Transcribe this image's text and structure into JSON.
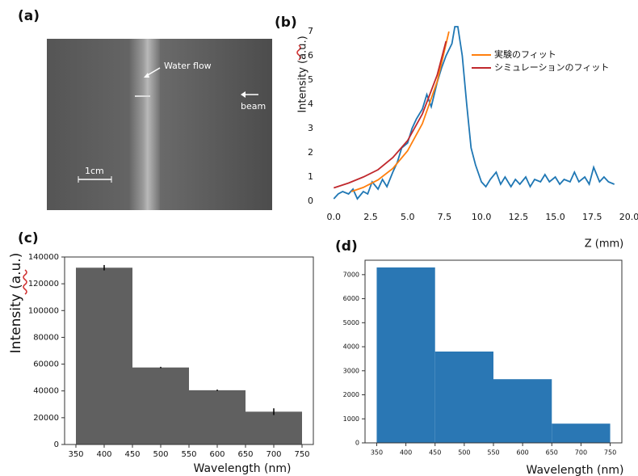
{
  "image": {
    "panel_label": "(a)",
    "annotations": [
      "Water flow",
      "beam",
      "1cm"
    ]
  },
  "chart_data": [
    {
      "type": "line",
      "panel_label": "(b)",
      "y_label": "Intensity (a.u.)",
      "x_label": "Z (mm)",
      "xlim": [
        -1,
        20
      ],
      "ylim": [
        -0.4,
        7.4
      ],
      "xticks": [
        {
          "value": 0,
          "label": "0.0"
        },
        {
          "value": 2.5,
          "label": "2.5"
        },
        {
          "value": 5,
          "label": "5.0"
        },
        {
          "value": 7.5,
          "label": "7.5"
        },
        {
          "value": 10,
          "label": "10.0"
        },
        {
          "value": 12.5,
          "label": "12.5"
        },
        {
          "value": 15,
          "label": "15.0"
        },
        {
          "value": 17.5,
          "label": "17.5"
        },
        {
          "value": 20,
          "label": "20.0"
        }
      ],
      "yticks": [
        0,
        1,
        2,
        3,
        4,
        5,
        6,
        7
      ],
      "series": [
        {
          "color": "#1f77b4",
          "x": [
            0,
            0.3,
            0.6,
            1,
            1.3,
            1.6,
            2,
            2.3,
            2.6,
            3,
            3.3,
            3.6,
            4,
            4.3,
            4.6,
            5,
            5.3,
            5.6,
            6,
            6.3,
            6.6,
            7,
            7.3,
            7.6,
            8,
            8.2,
            8.4,
            8.7,
            9,
            9.3,
            9.6,
            10,
            10.3,
            10.6,
            11,
            11.3,
            11.6,
            12,
            12.3,
            12.6,
            13,
            13.3,
            13.6,
            14,
            14.3,
            14.6,
            15,
            15.3,
            15.6,
            16,
            16.3,
            16.6,
            17,
            17.3,
            17.6,
            18,
            18.3,
            18.6,
            19
          ],
          "values": [
            0.1,
            0.3,
            0.4,
            0.3,
            0.5,
            0.1,
            0.4,
            0.3,
            0.8,
            0.5,
            0.9,
            0.6,
            1.2,
            1.6,
            2.2,
            2.4,
            3.0,
            3.4,
            3.8,
            4.4,
            3.9,
            4.9,
            5.5,
            6.0,
            6.5,
            7.2,
            7.2,
            6.0,
            4.0,
            2.2,
            1.5,
            0.8,
            0.6,
            0.9,
            1.2,
            0.7,
            1.0,
            0.6,
            0.9,
            0.7,
            1.0,
            0.6,
            0.9,
            0.8,
            1.1,
            0.8,
            1.0,
            0.7,
            0.9,
            0.8,
            1.2,
            0.8,
            1.0,
            0.7,
            1.4,
            0.8,
            1.0,
            0.8,
            0.7
          ]
        },
        {
          "name": "実験のフィット",
          "color": "#ff7f0e",
          "x": [
            1.2,
            2,
            3,
            4,
            5,
            6,
            7,
            7.8
          ],
          "values": [
            0.4,
            0.57,
            0.88,
            1.35,
            2.08,
            3.2,
            4.93,
            7.0
          ]
        },
        {
          "name": "シミュレーションのフィット",
          "color": "#c0282d",
          "x": [
            0,
            1,
            2,
            3,
            4,
            5,
            6,
            7,
            7.6
          ],
          "values": [
            0.55,
            0.75,
            1.0,
            1.3,
            1.8,
            2.5,
            3.6,
            5.2,
            6.6
          ]
        }
      ]
    },
    {
      "type": "histogram",
      "panel_label": "(c)",
      "y_label": "Intensity (a.u.)",
      "x_label": "Wavelength (nm)",
      "color": "#606060",
      "xlim": [
        330,
        770
      ],
      "ylim": [
        0,
        140000
      ],
      "xticks": [
        350,
        400,
        450,
        500,
        550,
        600,
        650,
        700,
        750
      ],
      "yticks": [
        0,
        20000,
        40000,
        60000,
        80000,
        100000,
        120000,
        140000
      ],
      "bins": [
        350,
        450,
        550,
        650,
        750
      ],
      "values": [
        132000,
        57500,
        40500,
        24500
      ],
      "errors": [
        2000,
        500,
        500,
        2500
      ]
    },
    {
      "type": "histogram",
      "panel_label": "(d)",
      "x_label": "Wavelength (nm)",
      "color": "#2a77b4",
      "xlim": [
        330,
        770
      ],
      "ylim": [
        0,
        7600
      ],
      "xticks": [
        350,
        400,
        450,
        500,
        550,
        600,
        650,
        700,
        750
      ],
      "yticks": [
        0,
        1000,
        2000,
        3000,
        4000,
        5000,
        6000,
        7000
      ],
      "bins": [
        350,
        450,
        550,
        650,
        750
      ],
      "values": [
        7300,
        3800,
        2650,
        800
      ]
    }
  ]
}
